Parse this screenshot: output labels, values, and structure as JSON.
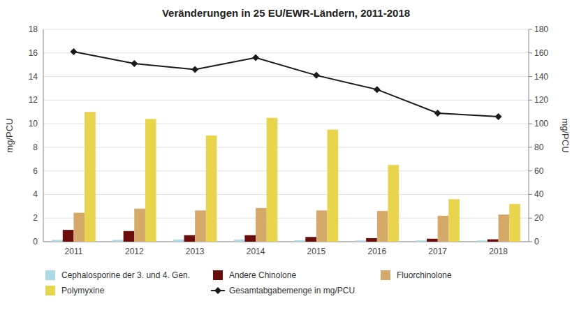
{
  "chart_data": {
    "type": "bar",
    "title": "Veränderungen in 25 EU/EWR-Ländern, 2011-2018",
    "categories": [
      "2011",
      "2012",
      "2013",
      "2014",
      "2015",
      "2016",
      "2017",
      "2018"
    ],
    "series": [
      {
        "name": "Cephalosporine der 3. und 4. Gen.",
        "type": "bar",
        "color": "#add8e6",
        "values": [
          0.15,
          0.15,
          0.18,
          0.18,
          0.12,
          0.1,
          0.1,
          0.1
        ]
      },
      {
        "name": "Andere Chinolone",
        "type": "bar",
        "color": "#6b0d0d",
        "values": [
          1.0,
          0.9,
          0.55,
          0.55,
          0.4,
          0.3,
          0.25,
          0.2
        ]
      },
      {
        "name": "Fluorchinolone",
        "type": "bar",
        "color": "#d4a96a",
        "values": [
          2.45,
          2.8,
          2.65,
          2.85,
          2.65,
          2.6,
          2.2,
          2.3
        ]
      },
      {
        "name": "Polymyxine",
        "type": "bar",
        "color": "#e8d44d",
        "values": [
          11.0,
          10.4,
          9.0,
          10.5,
          9.5,
          6.5,
          3.6,
          3.2
        ]
      },
      {
        "name": "Gesamtabgabemenge in mg/PCU",
        "type": "line",
        "axis": "y2",
        "color": "#1a1a1a",
        "marker": "diamond",
        "values": [
          161,
          151,
          146,
          156,
          141,
          129,
          109,
          106
        ]
      }
    ],
    "ylabel": "mg/PCU",
    "y2label": "mg/PCU",
    "ylim": [
      0,
      18
    ],
    "yticks": [
      0,
      2,
      4,
      6,
      8,
      10,
      12,
      14,
      16,
      18
    ],
    "y2lim": [
      0,
      180
    ],
    "y2ticks": [
      0,
      20,
      40,
      60,
      80,
      100,
      120,
      140,
      160,
      180
    ],
    "grid": true,
    "legend": "bottom"
  }
}
